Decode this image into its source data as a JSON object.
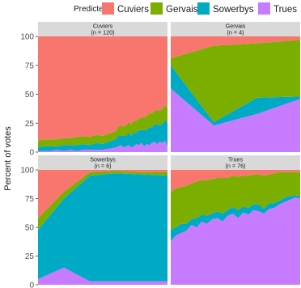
{
  "chart_data": {
    "type": "area",
    "stacked": true,
    "stack_order_bottom_to_top": [
      "Trues",
      "Sowerbys",
      "Gervais",
      "Cuviers"
    ],
    "legend": {
      "title": "Predicted",
      "placement": "top",
      "entries": [
        {
          "name": "Cuviers",
          "color": "#F8766D"
        },
        {
          "name": "Gervais",
          "color": "#7CAE00"
        },
        {
          "name": "Sowerbys",
          "color": "#00A9C4"
        },
        {
          "name": "Trues",
          "color": "#C77CFF"
        }
      ]
    },
    "ylabel": "Percent of votes",
    "ylim": [
      0,
      100
    ],
    "yticks": [
      0,
      25,
      50,
      75,
      100
    ],
    "panels": [
      {
        "title": "Cuviers",
        "subtitle": "(n = 120)",
        "x": [
          0,
          5,
          10,
          15,
          20,
          25,
          30,
          35,
          40,
          45,
          50,
          55,
          60,
          62,
          64,
          66,
          68,
          70,
          72,
          74,
          76,
          78,
          80,
          82,
          84,
          86,
          88,
          90,
          92,
          94,
          96,
          98,
          100
        ],
        "series": [
          {
            "name": "Trues",
            "values": [
              1,
              1,
              1,
              2,
              1,
              2,
              1,
              2,
              2,
              2,
              2,
              3,
              4,
              5,
              6,
              4,
              5,
              6,
              4,
              5,
              7,
              6,
              8,
              5,
              7,
              6,
              8,
              9,
              7,
              9,
              8,
              10,
              5
            ]
          },
          {
            "name": "Sowerbys",
            "values": [
              3,
              4,
              4,
              3,
              5,
              4,
              5,
              5,
              4,
              6,
              5,
              6,
              7,
              9,
              8,
              10,
              9,
              11,
              10,
              12,
              10,
              13,
              11,
              14,
              12,
              16,
              13,
              15,
              17,
              14,
              16,
              18,
              20
            ]
          },
          {
            "name": "Gervais",
            "values": [
              6,
              6,
              6,
              6,
              6,
              6,
              7,
              7,
              7,
              7,
              7,
              7,
              7,
              8,
              9,
              8,
              9,
              9,
              10,
              10,
              10,
              10,
              11,
              11,
              12,
              12,
              12,
              12,
              12,
              13,
              13,
              13,
              13
            ]
          },
          {
            "name": "Cuviers",
            "values": [
              90,
              89,
              89,
              89,
              88,
              88,
              87,
              86,
              87,
              85,
              86,
              84,
              82,
              78,
              77,
              78,
              77,
              74,
              76,
              73,
              73,
              71,
              70,
              70,
              69,
              66,
              67,
              64,
              64,
              64,
              63,
              59,
              62
            ]
          }
        ]
      },
      {
        "title": "Gervais",
        "subtitle": "(n = 4)",
        "x": [
          0,
          33.3,
          66.7,
          100
        ],
        "series": [
          {
            "name": "Trues",
            "values": [
              55,
              23,
              33,
              46
            ]
          },
          {
            "name": "Sowerbys",
            "values": [
              20,
              3,
              14,
              2
            ]
          },
          {
            "name": "Gervais",
            "values": [
              6,
              66,
              47,
              49
            ]
          },
          {
            "name": "Cuviers",
            "values": [
              19,
              8,
              6,
              3
            ]
          }
        ]
      },
      {
        "title": "Sowerbys",
        "subtitle": "(n = 6)",
        "x": [
          0,
          20,
          40,
          60,
          80,
          100
        ],
        "series": [
          {
            "name": "Trues",
            "values": [
              5,
              15,
              3,
              3,
              3,
              3
            ]
          },
          {
            "name": "Sowerbys",
            "values": [
              43,
              60,
              92,
              94,
              93,
              92
            ]
          },
          {
            "name": "Gervais",
            "values": [
              10,
              6,
              3,
              2,
              2,
              3
            ]
          },
          {
            "name": "Cuviers",
            "values": [
              42,
              19,
              2,
              1,
              2,
              2
            ]
          }
        ]
      },
      {
        "title": "Trues",
        "subtitle": "(n = 76)",
        "x": [
          0,
          4,
          8,
          12,
          16,
          20,
          24,
          28,
          32,
          36,
          40,
          44,
          48,
          52,
          56,
          60,
          64,
          68,
          72,
          76,
          80,
          84,
          88,
          92,
          96,
          100
        ],
        "series": [
          {
            "name": "Trues",
            "values": [
              38,
              43,
              45,
              47,
              52,
              50,
              55,
              53,
              57,
              58,
              55,
              60,
              62,
              58,
              63,
              61,
              65,
              64,
              62,
              66,
              67,
              70,
              72,
              74,
              76,
              75
            ]
          },
          {
            "name": "Sowerbys",
            "values": [
              10,
              7,
              8,
              6,
              5,
              8,
              6,
              7,
              5,
              6,
              7,
              5,
              6,
              7,
              5,
              6,
              5,
              6,
              4,
              5,
              4,
              3,
              4,
              3,
              2,
              2
            ]
          },
          {
            "name": "Gervais",
            "values": [
              33,
              34,
              32,
              33,
              31,
              32,
              30,
              31,
              30,
              29,
              31,
              28,
              27,
              29,
              27,
              28,
              26,
              26,
              29,
              25,
              26,
              25,
              22,
              21,
              20,
              21
            ]
          },
          {
            "name": "Cuviers",
            "values": [
              19,
              16,
              15,
              14,
              12,
              10,
              9,
              9,
              8,
              7,
              7,
              7,
              5,
              6,
              5,
              5,
              4,
              4,
              5,
              4,
              3,
              2,
              2,
              2,
              2,
              2
            ]
          }
        ]
      }
    ]
  }
}
